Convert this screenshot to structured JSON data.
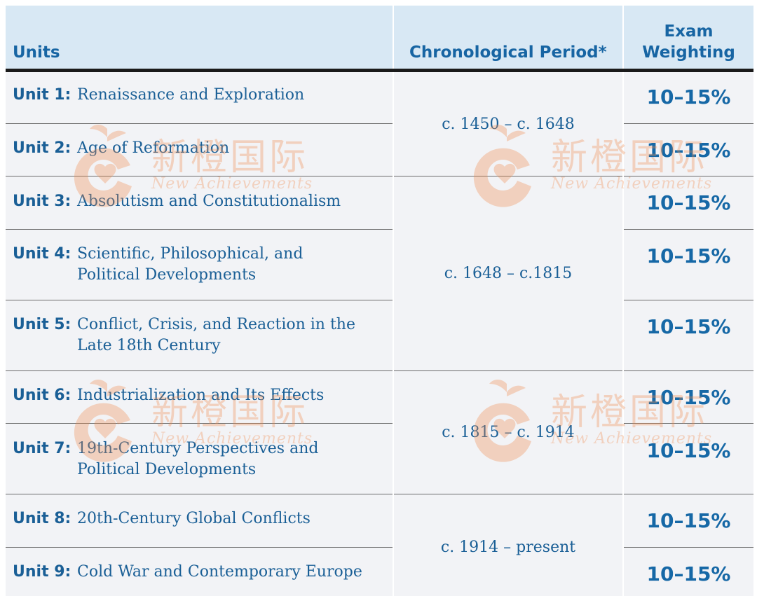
{
  "header": {
    "units": "Units",
    "period": "Chronological Period*",
    "weighting_line1": "Exam",
    "weighting_line2": "Weighting"
  },
  "units": [
    {
      "num": "Unit 1:",
      "title": "Renaissance and Exploration",
      "weight": "10–15%"
    },
    {
      "num": "Unit 2:",
      "title": "Age of Reformation",
      "weight": "10–15%"
    },
    {
      "num": "Unit 3:",
      "title": "Absolutism and Constitutionalism",
      "weight": "10–15%"
    },
    {
      "num": "Unit 4:",
      "title": "Scientific, Philosophical, and Political Developments",
      "weight": "10–15%"
    },
    {
      "num": "Unit 5:",
      "title": "Conflict, Crisis, and Reaction in the Late 18th Century",
      "weight": "10–15%"
    },
    {
      "num": "Unit 6:",
      "title": "Industrialization and Its Effects",
      "weight": "10–15%"
    },
    {
      "num": "Unit 7:",
      "title": "19th-Century Perspectives and Political Developments",
      "weight": "10–15%"
    },
    {
      "num": "Unit 8:",
      "title": "20th-Century Global Conflicts",
      "weight": "10–15%"
    },
    {
      "num": "Unit 9:",
      "title": "Cold War and Contemporary Europe",
      "weight": "10–15%"
    }
  ],
  "periods": [
    "c. 1450 – c. 1648",
    "c. 1648 – c.1815",
    "c. 1815 – c. 1914",
    "c. 1914 – present"
  ],
  "watermark": {
    "chinese": "新橙国际",
    "english": "New Achievements"
  },
  "colors": {
    "accent": "#1a5f96",
    "header_bg": "#d8e8f4",
    "body_bg": "#f2f3f6",
    "watermark": "#f08a4b"
  }
}
